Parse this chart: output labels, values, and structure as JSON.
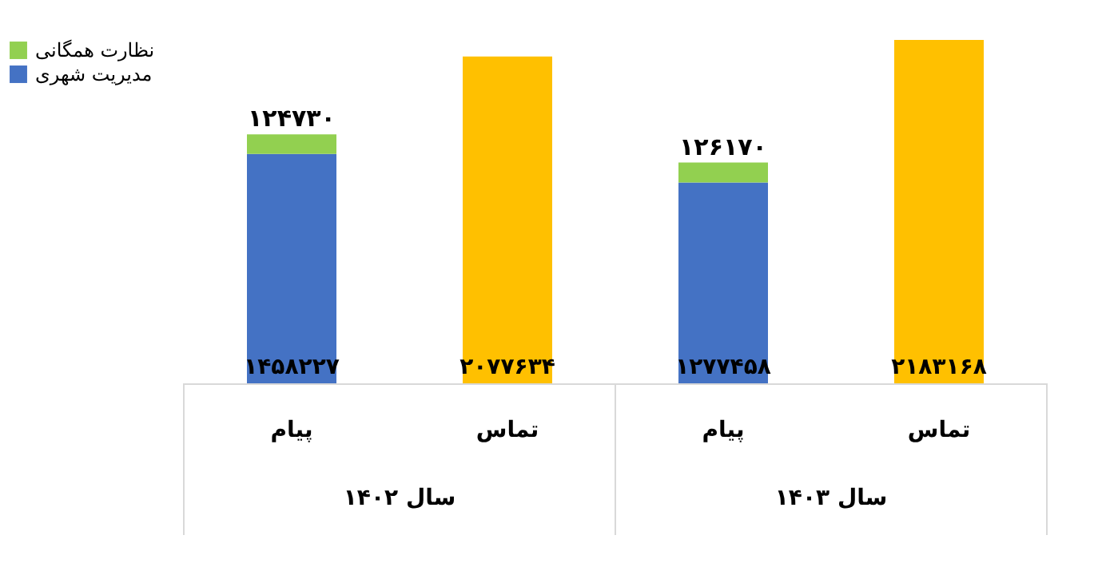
{
  "chart_data": {
    "type": "bar",
    "stacked": true,
    "categories": [
      "پیام",
      "تماس",
      "پیام",
      "تماس"
    ],
    "series": [
      {
        "name": "مدیریت شهری",
        "color": "#4472c4",
        "values": [
          1458227,
          null,
          1277458,
          null
        ],
        "value_labels": [
          "۱۴۵۸۲۲۷",
          null,
          "۱۲۷۷۴۵۸",
          null
        ]
      },
      {
        "name": "نظارت همگانی",
        "color": "#92d050",
        "values": [
          124730,
          null,
          126170,
          null
        ],
        "value_labels": [
          "۱۲۴۷۳۰",
          null,
          "۱۲۶۱۷۰",
          null
        ]
      },
      {
        "color": "#ffc000",
        "values": [
          null,
          2077634,
          null,
          2183168
        ],
        "value_labels": [
          null,
          "۲۰۷۷۶۳۴",
          null,
          "۲۱۸۳۱۶۸"
        ]
      }
    ],
    "annotations": [
      "سال ۱۴۰۲",
      "سال ۱۴۰۳"
    ],
    "legend": "left"
  }
}
